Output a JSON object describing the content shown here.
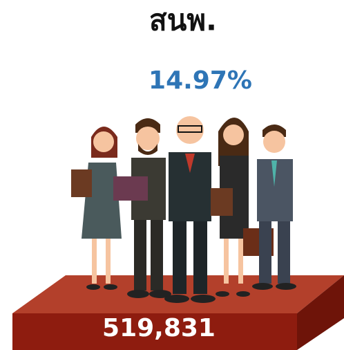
{
  "title": "สนพ.",
  "percentage": "14.97%",
  "count": "519,831"
}
